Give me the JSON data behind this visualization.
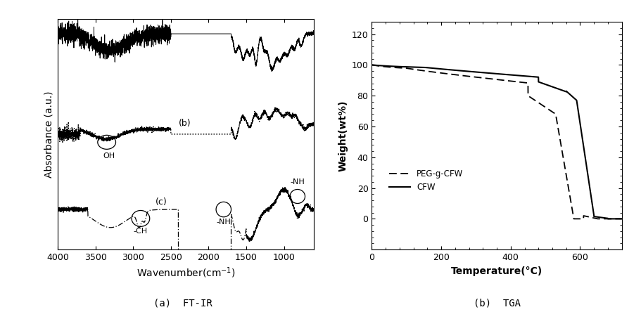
{
  "tga_xlim": [
    0,
    720
  ],
  "tga_ylim": [
    -20,
    125
  ],
  "tga_yticks": [
    0,
    20,
    40,
    60,
    80,
    100,
    120
  ],
  "tga_xticks": [
    0,
    200,
    400,
    600
  ],
  "xlabel_ftir": "Wavenumber(cm$^{-1}$)",
  "ylabel_ftir": "Absorbance (a.u.)",
  "xlabel_tga": "Temperature(°C)",
  "ylabel_tga": "Weight(wt%)",
  "caption_ftir": "(a)  FT-IR",
  "caption_tga": "(b)  TGA",
  "label_a": "(a)",
  "label_b": "(b)",
  "label_c": "(c)",
  "annotation_OH": "OH",
  "annotation_CH": "-CH",
  "annotation_NH1": "-NH",
  "annotation_NH2": "-NH",
  "legend_peg": "PEG-g-CFW",
  "legend_cfw": "CFW"
}
